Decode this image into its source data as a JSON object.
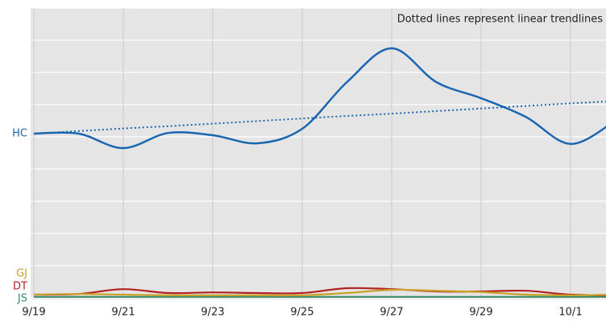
{
  "chart_data": {
    "type": "line",
    "annotation": "Dotted lines represent linear trendlines",
    "categories": [
      "9/19",
      null,
      "9/21",
      null,
      "9/23",
      null,
      "9/25",
      null,
      "9/27",
      null,
      "9/29",
      null,
      "10/1",
      null
    ],
    "ylim": [
      0,
      9
    ],
    "yticks": [
      0,
      1,
      2,
      3,
      4,
      5,
      6,
      7,
      8,
      9
    ],
    "grid": true,
    "series": [
      {
        "name": "HC",
        "color": "#1a66b0",
        "values": [
          5.1,
          5.1,
          4.65,
          5.12,
          5.05,
          4.8,
          5.25,
          6.7,
          7.75,
          6.7,
          6.2,
          5.62,
          4.78,
          5.5
        ],
        "trend": [
          5.1,
          5.18,
          5.26,
          5.33,
          5.41,
          5.49,
          5.57,
          5.65,
          5.72,
          5.8,
          5.88,
          5.96,
          6.04,
          6.11
        ]
      },
      {
        "name": "GJ",
        "color": "#c9a227",
        "values": [
          0.1,
          0.12,
          0.1,
          0.08,
          0.08,
          0.08,
          0.08,
          0.15,
          0.25,
          0.22,
          0.18,
          0.1,
          0.08,
          0.1
        ]
      },
      {
        "name": "DT",
        "color": "#b22222",
        "values": [
          0.1,
          0.12,
          0.27,
          0.15,
          0.17,
          0.15,
          0.15,
          0.3,
          0.27,
          0.2,
          0.2,
          0.22,
          0.1,
          0.08
        ]
      },
      {
        "name": "JS",
        "color": "#3a8a6a",
        "values": [
          0.03,
          0.03,
          0.03,
          0.03,
          0.03,
          0.03,
          0.03,
          0.03,
          0.03,
          0.03,
          0.03,
          0.03,
          0.03,
          0.03
        ]
      }
    ]
  }
}
